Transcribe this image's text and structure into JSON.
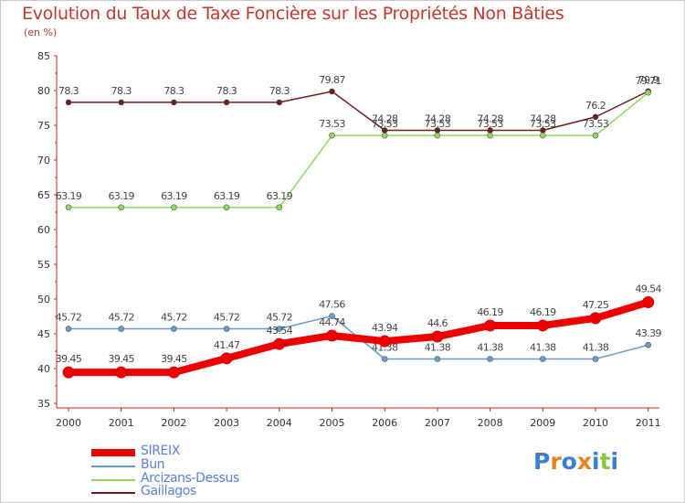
{
  "chart_data": {
    "type": "line",
    "title": "Evolution du Taux de Taxe Foncière sur les Propriétés Non Bâties",
    "ylabel": "(en %)",
    "xlabel": "",
    "categories": [
      "2000",
      "2001",
      "2002",
      "2003",
      "2004",
      "2005",
      "2006",
      "2007",
      "2008",
      "2009",
      "2010",
      "2011"
    ],
    "ylim": [
      35,
      85
    ],
    "yticks": [
      "35",
      "40",
      "45",
      "50",
      "55",
      "60",
      "65",
      "70",
      "75",
      "80",
      "85"
    ],
    "series": [
      {
        "name": "Gaillagos",
        "color": "#6b1f1f",
        "values": [
          78.3,
          78.3,
          78.3,
          78.3,
          78.3,
          79.87,
          74.28,
          74.28,
          74.28,
          74.28,
          76.2,
          79.9
        ],
        "labels": [
          "78.3",
          "78.3",
          "78.3",
          "78.3",
          "78.3",
          "79.87",
          "74.28",
          "74.28",
          "74.28",
          "74.28",
          "76.2",
          "79.9"
        ]
      },
      {
        "name": "Arcizans-Dessus",
        "color": "#90d860",
        "values": [
          63.19,
          63.19,
          63.19,
          63.19,
          63.19,
          73.53,
          73.53,
          73.53,
          73.53,
          73.53,
          73.53,
          79.71
        ],
        "labels": [
          "63.19",
          "63.19",
          "63.19",
          "63.19",
          "63.19",
          "73.53",
          "73.53",
          "73.53",
          "73.53",
          "73.53",
          "73.53",
          "79.71"
        ]
      },
      {
        "name": "Bun",
        "color": "#6a9ccc",
        "values": [
          45.72,
          45.72,
          45.72,
          45.72,
          45.72,
          47.56,
          41.38,
          41.38,
          41.38,
          41.38,
          41.38,
          43.39
        ],
        "labels": [
          "45.72",
          "45.72",
          "45.72",
          "45.72",
          "45.72",
          "47.56",
          "41.38",
          "41.38",
          "41.38",
          "41.38",
          "41.38",
          "43.39"
        ]
      },
      {
        "name": "SIREIX",
        "color": "#ee0000",
        "values": [
          39.45,
          39.45,
          39.45,
          41.47,
          43.54,
          44.74,
          43.94,
          44.6,
          46.19,
          46.19,
          47.25,
          49.54
        ],
        "labels": [
          "39.45",
          "39.45",
          "39.45",
          "41.47",
          "43.54",
          "44.74",
          "43.94",
          "44.6",
          "46.19",
          "46.19",
          "47.25",
          "49.54"
        ]
      }
    ],
    "grid": false,
    "legend_position": "bottom-left"
  },
  "legend": [
    {
      "name": "SIREIX",
      "color": "#ee0000"
    },
    {
      "name": "Bun",
      "color": "#6a9ccc"
    },
    {
      "name": "Arcizans-Dessus",
      "color": "#90d860"
    },
    {
      "name": "Gaillagos",
      "color": "#6b1f1f"
    }
  ],
  "logo": {
    "text": "Proxiti"
  }
}
